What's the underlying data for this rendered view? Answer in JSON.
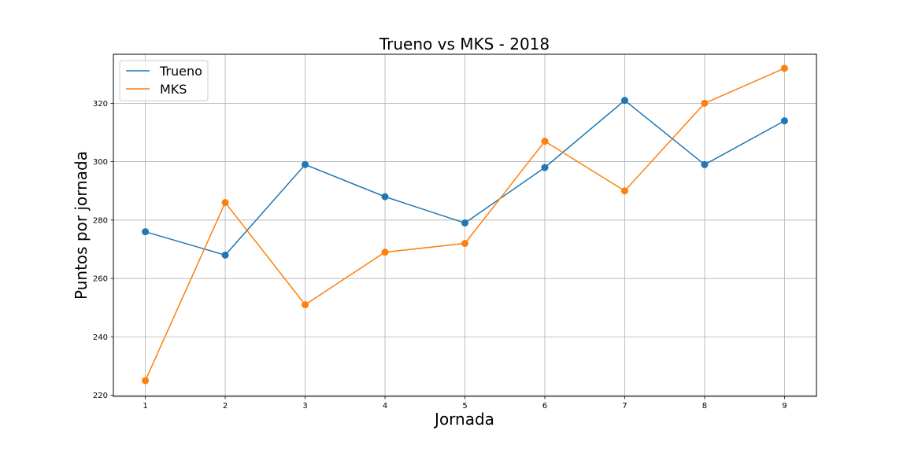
{
  "chart_data": {
    "type": "line",
    "title": "Trueno vs MKS - 2018",
    "xlabel": "Jornada",
    "ylabel": "Puntos por jornada",
    "x": [
      1,
      2,
      3,
      4,
      5,
      6,
      7,
      8,
      9
    ],
    "x_ticks": [
      "1",
      "2",
      "3",
      "4",
      "5",
      "6",
      "7",
      "8",
      "9"
    ],
    "y_ticks": [
      "220",
      "240",
      "260",
      "280",
      "300",
      "320"
    ],
    "xlim": [
      0.6,
      9.4
    ],
    "ylim": [
      219.6,
      336.8
    ],
    "grid": true,
    "legend_position": "top-left",
    "series": [
      {
        "name": "Trueno",
        "color": "#1f77b4",
        "values": [
          276,
          268,
          299,
          288,
          279,
          298,
          321,
          299,
          314
        ]
      },
      {
        "name": "MKS",
        "color": "#ff7f0e",
        "values": [
          225,
          286,
          251,
          269,
          272,
          307,
          290,
          320,
          332
        ]
      }
    ]
  }
}
